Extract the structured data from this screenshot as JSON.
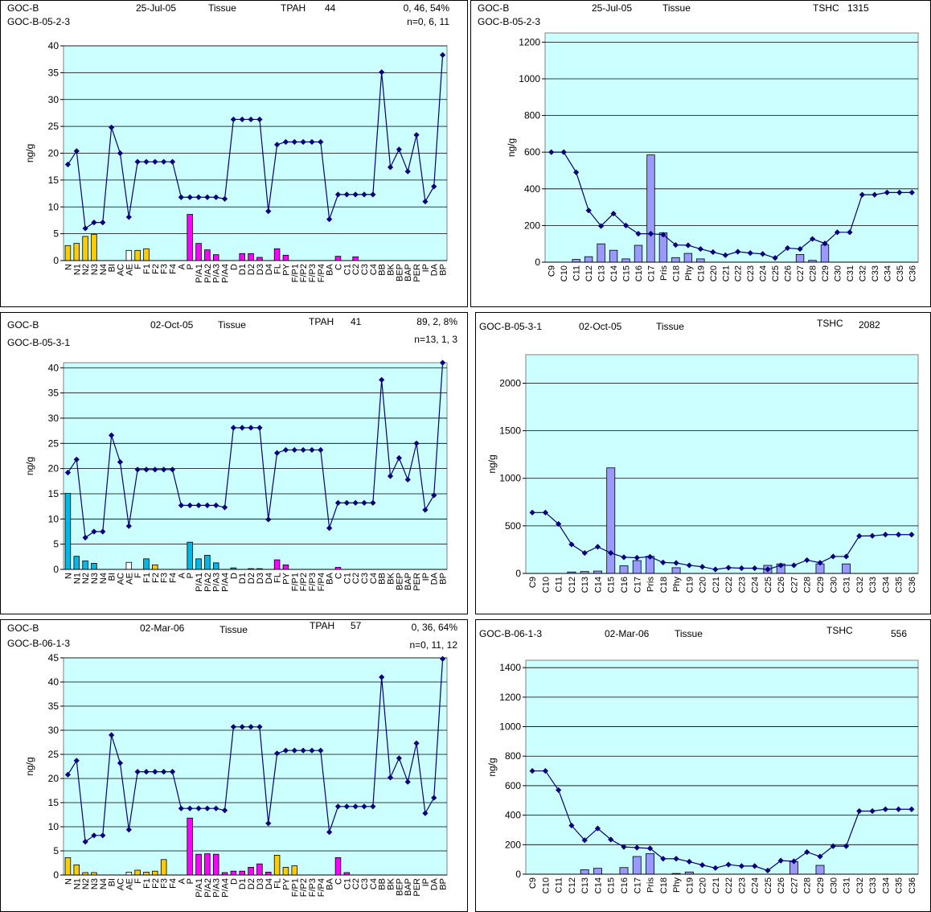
{
  "colors": {
    "plot_bg": "#ccffff",
    "line": "#00007f",
    "marker": "#00007f",
    "bar_outline": "#000000",
    "yellow": "#ffcc00",
    "magenta": "#ff00ff",
    "cyan": "#00b8e6",
    "white": "#ffffff",
    "lavender": "#9999ff"
  },
  "pah_categories": [
    "N",
    "N1",
    "N2",
    "N3",
    "N4",
    "BI",
    "AC",
    "AE",
    "F",
    "F1",
    "F2",
    "F3",
    "F4",
    "A",
    "P",
    "P/A1",
    "P/A2",
    "P/A3",
    "P/A4",
    "D",
    "D1",
    "D2",
    "D3",
    "D4",
    "FL",
    "PY",
    "F/P1",
    "F/P2",
    "F/P3",
    "F/P4",
    "BA",
    "C",
    "C1",
    "C2",
    "C3",
    "C4",
    "BB",
    "BK",
    "BEP",
    "BAP",
    "PER",
    "IP",
    "DA",
    "BP"
  ],
  "shc_categories": [
    "C9",
    "C10",
    "C11",
    "C12",
    "C13",
    "C14",
    "C15",
    "C16",
    "C17",
    "Pris",
    "C18",
    "Phy",
    "C19",
    "C20",
    "C21",
    "C22",
    "C23",
    "C24",
    "C25",
    "C26",
    "C27",
    "C28",
    "C29",
    "C30",
    "C31",
    "C32",
    "C33",
    "C34",
    "C35",
    "C36"
  ],
  "panels": [
    {
      "header": {
        "site": "GOC-B",
        "date": "25-Jul-05",
        "matrix": "Tissue",
        "analyte": "TPAH",
        "total": "44",
        "pct": "0, 46, 54%",
        "sample": "GOC-B-05-2-3",
        "n": "n=0, 6, 11"
      },
      "chart_data": {
        "type": "bar+line",
        "ylabel": "ng/g",
        "ylim": [
          0,
          40
        ],
        "yticks": [
          0,
          5,
          10,
          15,
          20,
          25,
          30,
          35,
          40
        ],
        "bars": [
          2.8,
          3.2,
          4.5,
          4.9,
          0,
          0,
          0,
          1.9,
          1.9,
          2.2,
          0,
          0,
          0,
          0,
          8.6,
          3.2,
          2.0,
          1.1,
          0,
          0,
          1.3,
          1.3,
          0.6,
          0,
          2.2,
          1.0,
          0,
          0,
          0,
          0,
          0,
          0.8,
          0,
          0.7,
          0,
          0,
          0,
          0,
          0,
          0,
          0,
          0,
          0,
          0
        ],
        "bar_colors": [
          "yellow",
          "yellow",
          "yellow",
          "yellow",
          "none",
          "none",
          "none",
          "white",
          "yellow",
          "yellow",
          "none",
          "none",
          "none",
          "none",
          "magenta",
          "magenta",
          "magenta",
          "magenta",
          "none",
          "none",
          "magenta",
          "magenta",
          "magenta",
          "none",
          "magenta",
          "magenta",
          "none",
          "none",
          "none",
          "none",
          "none",
          "magenta",
          "none",
          "magenta",
          "none",
          "none",
          "none",
          "none",
          "none",
          "none",
          "none",
          "none",
          "none",
          "none"
        ],
        "line": [
          17.9,
          20.4,
          6.0,
          7.1,
          7.1,
          24.8,
          20.0,
          8.1,
          18.4,
          18.4,
          18.4,
          18.4,
          18.4,
          11.8,
          11.8,
          11.8,
          11.8,
          11.8,
          11.5,
          26.3,
          26.3,
          26.3,
          26.3,
          9.2,
          21.6,
          22.1,
          22.1,
          22.1,
          22.1,
          22.1,
          7.7,
          12.3,
          12.3,
          12.3,
          12.3,
          12.3,
          35.1,
          17.4,
          20.7,
          16.6,
          23.4,
          11.0,
          13.8,
          38.3
        ]
      }
    },
    {
      "header": {
        "site": "GOC-B",
        "date": "25-Jul-05",
        "matrix": "Tissue",
        "analyte": "TSHC",
        "total": "1315",
        "sample": "GOC-B-05-2-3"
      },
      "chart_data": {
        "type": "bar+line",
        "ylabel": "ng/g",
        "ylim": [
          0,
          1250
        ],
        "yticks": [
          0,
          200,
          400,
          600,
          800,
          1000,
          1200
        ],
        "bars": [
          0,
          0,
          15,
          30,
          100,
          65,
          18,
          92,
          585,
          160,
          25,
          48,
          18,
          0,
          0,
          0,
          0,
          0,
          0,
          0,
          42,
          10,
          95,
          0,
          0,
          0,
          0,
          0,
          0,
          0
        ],
        "line": [
          600,
          600,
          490,
          282,
          197,
          265,
          200,
          155,
          155,
          150,
          94,
          92,
          72,
          55,
          38,
          57,
          50,
          45,
          23,
          77,
          72,
          127,
          102,
          163,
          163,
          368,
          368,
          380,
          380,
          380
        ]
      }
    },
    {
      "header": {
        "site": "GOC-B",
        "date": "02-Oct-05",
        "matrix": "Tissue",
        "analyte": "TPAH",
        "total": "41",
        "pct": "89, 2, 8%",
        "sample": "GOC-B-05-3-1",
        "n": "n=13, 1, 3"
      },
      "chart_data": {
        "type": "bar+line",
        "ylabel": "ng/g",
        "ylim": [
          0,
          41
        ],
        "yticks": [
          0,
          5,
          10,
          15,
          20,
          25,
          30,
          35,
          40
        ],
        "bars": [
          15.1,
          2.6,
          1.7,
          1.2,
          0,
          0,
          0,
          1.4,
          0,
          2.1,
          0.9,
          0,
          0,
          0,
          5.4,
          2.1,
          2.8,
          1.3,
          0,
          0.3,
          0,
          0.15,
          0.15,
          0,
          1.9,
          0.9,
          0,
          0,
          0,
          0,
          0,
          0.4,
          0,
          0,
          0,
          0,
          0,
          0,
          0,
          0,
          0,
          0,
          0,
          0
        ],
        "bar_colors": [
          "cyan",
          "cyan",
          "cyan",
          "cyan",
          "none",
          "none",
          "none",
          "white",
          "none",
          "cyan",
          "yellow",
          "none",
          "none",
          "none",
          "cyan",
          "cyan",
          "cyan",
          "cyan",
          "none",
          "cyan",
          "none",
          "cyan",
          "cyan",
          "none",
          "magenta",
          "magenta",
          "none",
          "none",
          "none",
          "none",
          "none",
          "magenta",
          "none",
          "none",
          "none",
          "none",
          "none",
          "none",
          "none",
          "none",
          "none",
          "none",
          "none",
          "none"
        ],
        "line": [
          19.2,
          21.8,
          6.3,
          7.5,
          7.5,
          26.6,
          21.3,
          8.6,
          19.8,
          19.8,
          19.8,
          19.8,
          19.8,
          12.7,
          12.7,
          12.7,
          12.7,
          12.7,
          12.3,
          28.1,
          28.1,
          28.1,
          28.1,
          9.9,
          23.1,
          23.7,
          23.7,
          23.7,
          23.7,
          23.7,
          8.2,
          13.2,
          13.2,
          13.2,
          13.2,
          13.2,
          37.6,
          18.5,
          22.1,
          17.8,
          25.0,
          11.8,
          14.7,
          41.0
        ]
      }
    },
    {
      "header": {
        "site": "",
        "date": "02-Oct-05",
        "matrix": "Tissue",
        "analyte": "TSHC",
        "total": "2082",
        "sample": "GOC-B-05-3-1"
      },
      "chart_data": {
        "type": "bar+line",
        "ylabel": "ng/g",
        "ylim": [
          0,
          2300
        ],
        "yticks": [
          0,
          500,
          1000,
          1500,
          2000
        ],
        "bars": [
          0,
          0,
          0,
          15,
          20,
          25,
          1110,
          80,
          135,
          180,
          0,
          60,
          0,
          0,
          0,
          0,
          0,
          0,
          85,
          100,
          0,
          0,
          100,
          0,
          100,
          0,
          0,
          0,
          0,
          0
        ],
        "line": [
          640,
          640,
          520,
          305,
          215,
          280,
          215,
          170,
          165,
          175,
          115,
          110,
          85,
          70,
          42,
          60,
          55,
          55,
          42,
          85,
          85,
          140,
          112,
          178,
          178,
          393,
          395,
          408,
          408,
          408
        ]
      }
    },
    {
      "header": {
        "site": "GOC-B",
        "date": "02-Mar-06",
        "matrix": "Tissue",
        "analyte": "TPAH",
        "total": "57",
        "pct": "0, 36, 64%",
        "sample": "GOC-B-06-1-3",
        "n": "n=0, 11, 12"
      },
      "chart_data": {
        "type": "bar+line",
        "ylabel": "ng/g",
        "ylim": [
          0,
          45
        ],
        "yticks": [
          0,
          5,
          10,
          15,
          20,
          25,
          30,
          35,
          40,
          45
        ],
        "bars": [
          3.6,
          2.1,
          0.5,
          0.5,
          0,
          0,
          0,
          0.6,
          1.0,
          0.6,
          0.8,
          3.2,
          0,
          0,
          11.8,
          4.3,
          4.4,
          4.3,
          0.5,
          0.8,
          0.8,
          1.6,
          2.3,
          0.6,
          4.1,
          1.6,
          1.9,
          0,
          0,
          0,
          0,
          3.6,
          0.5,
          0,
          0,
          0,
          0,
          0,
          0,
          0,
          0,
          0,
          0,
          0
        ],
        "bar_colors": [
          "yellow",
          "yellow",
          "yellow",
          "yellow",
          "none",
          "none",
          "none",
          "white",
          "yellow",
          "yellow",
          "yellow",
          "yellow",
          "none",
          "none",
          "magenta",
          "magenta",
          "magenta",
          "magenta",
          "magenta",
          "magenta",
          "magenta",
          "magenta",
          "magenta",
          "magenta",
          "yellow",
          "yellow",
          "yellow",
          "none",
          "none",
          "none",
          "none",
          "magenta",
          "magenta",
          "none",
          "none",
          "none",
          "none",
          "none",
          "none",
          "none",
          "none",
          "none",
          "none",
          "none"
        ],
        "line": [
          20.8,
          23.7,
          6.9,
          8.2,
          8.2,
          29.0,
          23.2,
          9.4,
          21.4,
          21.4,
          21.4,
          21.4,
          21.4,
          13.8,
          13.8,
          13.8,
          13.8,
          13.8,
          13.4,
          30.7,
          30.7,
          30.7,
          30.7,
          10.7,
          25.2,
          25.8,
          25.8,
          25.8,
          25.8,
          25.8,
          8.9,
          14.2,
          14.2,
          14.2,
          14.2,
          14.2,
          41.0,
          20.2,
          24.2,
          19.3,
          27.3,
          12.8,
          16.0,
          44.8
        ]
      }
    },
    {
      "header": {
        "site": "",
        "date": "02-Mar-06",
        "matrix": "Tissue",
        "analyte": "TSHC",
        "total": "556",
        "sample": "GOC-B-06-1-3"
      },
      "chart_data": {
        "type": "bar+line",
        "ylabel": "ng/g",
        "ylim": [
          0,
          1450
        ],
        "yticks": [
          0,
          200,
          400,
          600,
          800,
          1000,
          1200,
          1400
        ],
        "bars": [
          0,
          0,
          0,
          0,
          30,
          40,
          0,
          45,
          120,
          140,
          0,
          5,
          15,
          0,
          0,
          0,
          0,
          0,
          0,
          0,
          85,
          0,
          60,
          0,
          0,
          0,
          0,
          0,
          0,
          0
        ],
        "line": [
          700,
          700,
          570,
          330,
          230,
          310,
          235,
          185,
          180,
          175,
          105,
          105,
          85,
          62,
          42,
          65,
          55,
          55,
          25,
          92,
          88,
          150,
          120,
          190,
          190,
          428,
          428,
          440,
          440,
          440
        ]
      }
    }
  ]
}
